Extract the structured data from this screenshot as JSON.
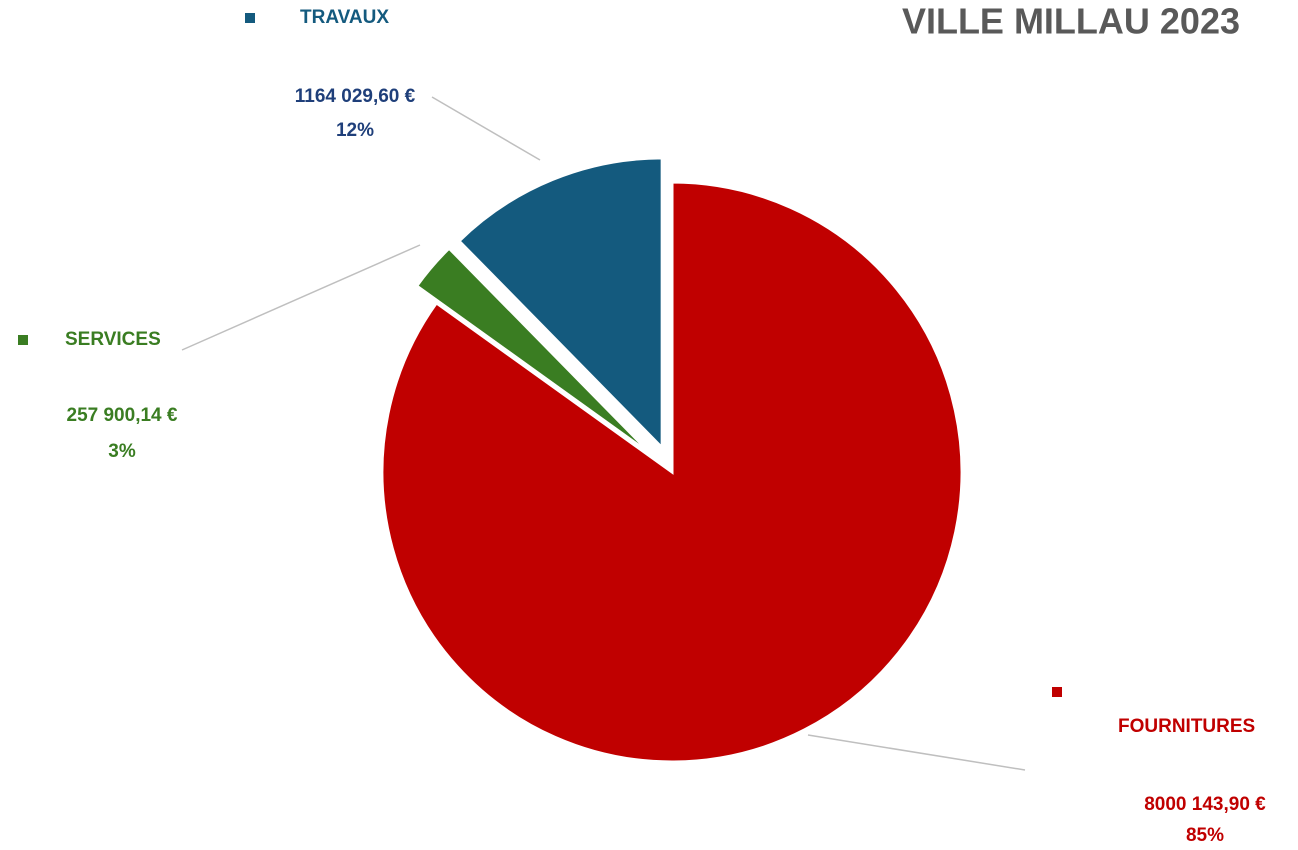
{
  "chart_data": {
    "type": "pie",
    "title": "VILLE MILLAU 2023",
    "categories": [
      "FOURNITURES",
      "SERVICES",
      "TRAVAUX"
    ],
    "values": [
      8000143.9,
      257900.14,
      1164029.6
    ],
    "value_labels": [
      "8000 143,90 €",
      "257 900,14 €",
      "1164 029,60 €"
    ],
    "percent_labels": [
      "85%",
      "3%",
      "12%"
    ],
    "colors": [
      "#c00000",
      "#3a7d22",
      "#145a7e"
    ]
  }
}
